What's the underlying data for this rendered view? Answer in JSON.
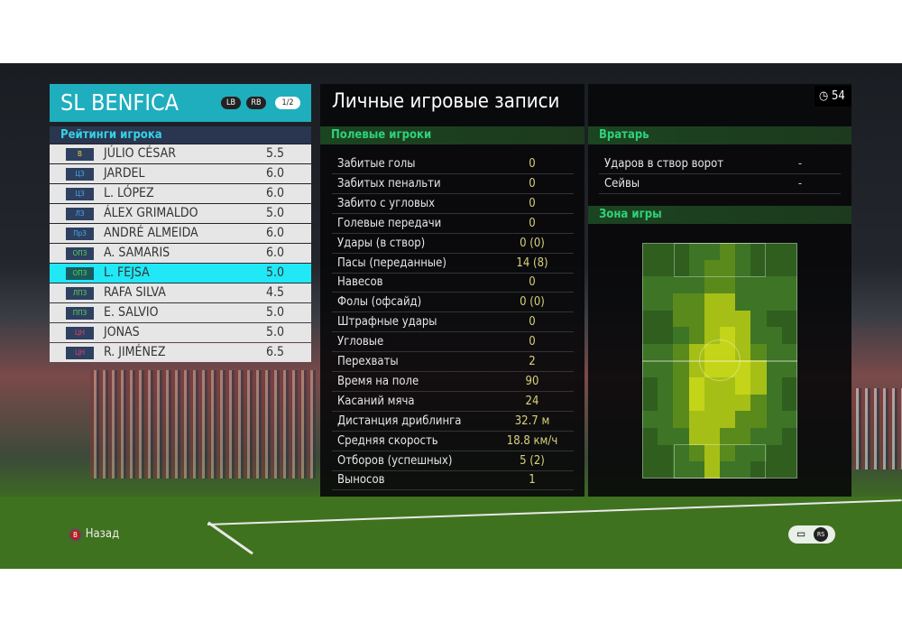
{
  "team": {
    "name": "SL BENFICA",
    "lb": "LB",
    "rb": "RB",
    "page": "1/2"
  },
  "ratings_label": "Рейтинги игрока",
  "players": [
    {
      "pos": "В",
      "pos_color": "#e8d23a",
      "name": "JÚLIO CÉSAR",
      "rating": "5.5"
    },
    {
      "pos": "ЦЗ",
      "pos_color": "#4aa8e8",
      "name": "JARDEL",
      "rating": "6.0"
    },
    {
      "pos": "ЦЗ",
      "pos_color": "#4aa8e8",
      "name": "L. LÓPEZ",
      "rating": "6.0"
    },
    {
      "pos": "ЛЗ",
      "pos_color": "#4aa8e8",
      "name": "ÁLEX GRIMALDO",
      "rating": "5.0"
    },
    {
      "pos": "ПрЗ",
      "pos_color": "#4aa8e8",
      "name": "ANDRÉ ALMEIDA",
      "rating": "6.0"
    },
    {
      "pos": "ОПЗ",
      "pos_color": "#5ad45a",
      "name": "A. SAMARIS",
      "rating": "6.0"
    },
    {
      "pos": "ОПЗ",
      "pos_color": "#5ad45a",
      "name": "L. FEJSA",
      "rating": "5.0",
      "selected": true
    },
    {
      "pos": "ЛПЗ",
      "pos_color": "#5ad45a",
      "name": "RAFA SILVA",
      "rating": "4.5"
    },
    {
      "pos": "ППЗ",
      "pos_color": "#5ad45a",
      "name": "E. SALVIO",
      "rating": "5.0"
    },
    {
      "pos": "ЦН",
      "pos_color": "#e0406a",
      "name": "JONAS",
      "rating": "5.0"
    },
    {
      "pos": "ЦН",
      "pos_color": "#e0406a",
      "name": "R. JIMÉNEZ",
      "rating": "6.5"
    }
  ],
  "title": "Личные игровые записи",
  "timer": {
    "icon": "clock-icon",
    "value": "54"
  },
  "field": {
    "header": "Полевые игроки",
    "stats": [
      {
        "label": "Забитые голы",
        "value": "0"
      },
      {
        "label": "Забитых пенальти",
        "value": "0"
      },
      {
        "label": "Забито с угловых",
        "value": "0"
      },
      {
        "label": "Голевые передачи",
        "value": "0"
      },
      {
        "label": "Удары (в створ)",
        "value": "0 (0)"
      },
      {
        "label": "Пасы (переданные)",
        "value": "14 (8)"
      },
      {
        "label": "Навесов",
        "value": "0"
      },
      {
        "label": "Фолы (офсайд)",
        "value": "0 (0)"
      },
      {
        "label": "Штрафные удары",
        "value": "0"
      },
      {
        "label": "Угловые",
        "value": "0"
      },
      {
        "label": "Перехваты",
        "value": "2"
      },
      {
        "label": "Время на поле",
        "value": "90"
      },
      {
        "label": "Касаний мяча",
        "value": "24"
      },
      {
        "label": "Дистанция дриблинга",
        "value": "32.7 м"
      },
      {
        "label": "Средняя скорость",
        "value": "18.8 км/ч"
      },
      {
        "label": "Отборов (успешных)",
        "value": "5 (2)"
      },
      {
        "label": "Выносов",
        "value": "1"
      }
    ]
  },
  "keeper": {
    "header": "Вратарь",
    "stats": [
      {
        "label": "Ударов в створ ворот",
        "value": "-"
      },
      {
        "label": "Сейвы",
        "value": "-"
      }
    ]
  },
  "zone": {
    "header": "Зона игры",
    "heatmap": [
      [
        0,
        0,
        0,
        1,
        1,
        2,
        1,
        0,
        0,
        0
      ],
      [
        0,
        0,
        0,
        1,
        2,
        2,
        1,
        0,
        0,
        0
      ],
      [
        1,
        1,
        1,
        1,
        2,
        2,
        1,
        1,
        1,
        1
      ],
      [
        1,
        1,
        2,
        2,
        3,
        3,
        1,
        1,
        1,
        1
      ],
      [
        0,
        0,
        2,
        2,
        3,
        3,
        3,
        1,
        0,
        0
      ],
      [
        0,
        0,
        1,
        2,
        3,
        4,
        3,
        1,
        1,
        0
      ],
      [
        1,
        1,
        2,
        3,
        4,
        4,
        3,
        2,
        1,
        1
      ],
      [
        1,
        1,
        2,
        3,
        4,
        4,
        4,
        3,
        1,
        1
      ],
      [
        0,
        1,
        2,
        4,
        3,
        3,
        4,
        3,
        1,
        0
      ],
      [
        0,
        1,
        2,
        4,
        3,
        3,
        3,
        2,
        1,
        0
      ],
      [
        1,
        1,
        2,
        3,
        3,
        3,
        2,
        2,
        1,
        1
      ],
      [
        0,
        1,
        1,
        3,
        3,
        2,
        2,
        1,
        1,
        0
      ],
      [
        0,
        0,
        1,
        2,
        3,
        2,
        1,
        1,
        0,
        0
      ],
      [
        0,
        0,
        1,
        1,
        3,
        1,
        1,
        0,
        0,
        0
      ]
    ],
    "levels": [
      "#2f5e1e",
      "#3d7426",
      "#5a8a1c",
      "#a6bf16",
      "#c4d418"
    ]
  },
  "footer": {
    "back_button": "B",
    "back_label": "Назад",
    "chat_icon": "chat-icon",
    "rs_label": "RS"
  }
}
